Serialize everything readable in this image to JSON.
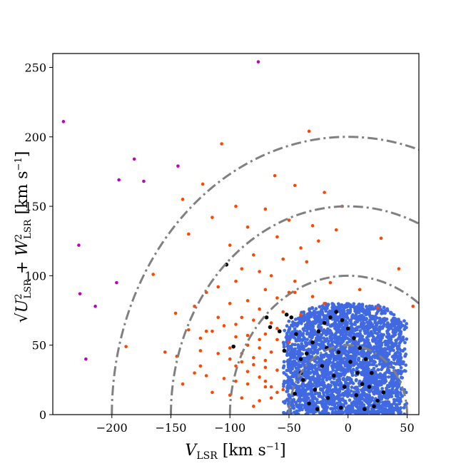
{
  "chart_data": {
    "type": "scatter",
    "title": "",
    "xlabel": "V_LSR [km s^-1]",
    "ylabel": "sqrt(U_LSR^2 + W_LSR^2) [km s^-1]",
    "xlim": [
      -250,
      60
    ],
    "ylim": [
      0,
      260
    ],
    "x_ticks": [
      -200,
      -150,
      -100,
      -50,
      0,
      50
    ],
    "y_ticks": [
      0,
      50,
      100,
      150,
      200,
      250
    ],
    "x_tick_labels": [
      "−200",
      "−150",
      "−100",
      "−50",
      "0",
      "50"
    ],
    "y_tick_labels": [
      "0",
      "50",
      "100",
      "150",
      "200",
      "250"
    ],
    "grid": false,
    "reference_circles": {
      "center": [
        0,
        0
      ],
      "radii": [
        50,
        100,
        150,
        200
      ],
      "color": "#808080",
      "style": "dash-dot"
    },
    "colors": {
      "thin_disk": "#4169e1",
      "thick_disk": "#ff4500",
      "halo": "#bf00bf",
      "highlight": "#000000",
      "reference": "#808080"
    },
    "series": [
      {
        "color": "#bf00bf",
        "marker_size": "small",
        "x": [
          -76,
          -241,
          -194,
          -181,
          -144,
          -173,
          -228,
          -227,
          -196,
          -214,
          -222
        ],
        "y": [
          254,
          211,
          169,
          184,
          179,
          168,
          122,
          87,
          95,
          78,
          40
        ]
      },
      {
        "color": "#ff4500",
        "marker_size": "small",
        "x": [
          -33,
          -107,
          -62,
          -45,
          -20,
          -5,
          -123,
          -140,
          -95,
          -70,
          -50,
          -30,
          -10,
          -115,
          -135,
          -85,
          -60,
          -40,
          -25,
          -100,
          -80,
          -55,
          -35,
          -90,
          -75,
          -65,
          -45,
          -95,
          -110,
          -120,
          -70,
          -50,
          -60,
          -85,
          -100,
          -130,
          -75,
          -55,
          -40,
          -90,
          -80,
          -65,
          -105,
          -115,
          -70,
          -95,
          -60,
          -50,
          -85,
          -75,
          -145,
          -125,
          -110,
          -100,
          -90,
          -80,
          -70,
          -60,
          -130,
          -120,
          -105,
          -95,
          -85,
          -65,
          -55,
          -140,
          -115,
          -100,
          -90,
          -75,
          -80,
          -70,
          -110,
          -120,
          -95,
          -60,
          -85,
          -75,
          -65,
          -125,
          -100,
          -90,
          -80,
          -70,
          -95,
          -85,
          -75,
          -70,
          -60,
          -65,
          -188,
          -165,
          -155,
          -146,
          -135,
          -125,
          28,
          43,
          55,
          25,
          10,
          -15,
          -30,
          -20,
          -45
        ],
        "y": [
          204,
          195,
          172,
          165,
          160,
          150,
          166,
          155,
          150,
          148,
          140,
          136,
          133,
          142,
          130,
          135,
          128,
          120,
          125,
          122,
          115,
          112,
          110,
          105,
          103,
          100,
          96,
          96,
          92,
          88,
          90,
          88,
          84,
          82,
          80,
          78,
          76,
          74,
          72,
          70,
          68,
          66,
          64,
          60,
          58,
          56,
          54,
          52,
          50,
          48,
          42,
          46,
          44,
          40,
          38,
          36,
          34,
          32,
          30,
          28,
          26,
          24,
          22,
          20,
          18,
          22,
          16,
          14,
          12,
          10,
          6,
          20,
          70,
          60,
          65,
          62,
          57,
          54,
          45,
          55,
          48,
          44,
          41,
          39,
          35,
          31,
          27,
          24,
          16,
          12,
          49,
          101,
          45,
          73,
          61,
          35,
          127,
          105,
          78,
          77,
          90,
          95,
          85,
          80,
          88
        ]
      },
      {
        "color": "#4169e1",
        "marker_size": "small",
        "region": "dense cloud bounded roughly by sqrt(x^2+y^2) < 82 about center (0,0), x in [-55, 50], y in [0, 80]"
      },
      {
        "color": "#000000",
        "marker_size": "medium",
        "x": [
          -103,
          -97,
          -69,
          -66,
          -58,
          -54,
          -52,
          -48,
          -44,
          -40,
          -35,
          -30,
          -25,
          -20,
          -15,
          -10,
          -5,
          0,
          5,
          10,
          15,
          20,
          -38,
          -22,
          -8,
          8,
          18,
          25,
          -45,
          -28,
          -12,
          2,
          12,
          -33,
          -17,
          -3,
          7,
          22,
          30,
          -26,
          -6,
          14,
          -40,
          -18
        ],
        "y": [
          108,
          49,
          70,
          63,
          60,
          46,
          72,
          70,
          58,
          40,
          44,
          52,
          60,
          66,
          70,
          74,
          68,
          62,
          55,
          48,
          40,
          30,
          25,
          35,
          45,
          30,
          20,
          10,
          15,
          18,
          28,
          38,
          22,
          8,
          12,
          20,
          14,
          6,
          16,
          4,
          5,
          4,
          30,
          48
        ]
      }
    ]
  }
}
